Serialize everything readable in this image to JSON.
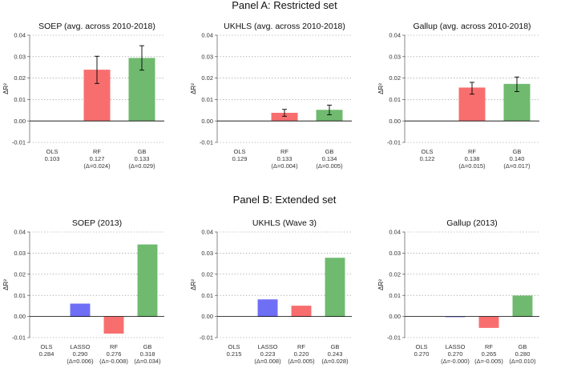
{
  "panels": [
    {
      "title": "Panel A: Restricted set",
      "charts": [
        {
          "type": "bar",
          "title": "SOEP (avg. across 2010-2018)",
          "ylabel": "ΔR²",
          "ylim": [
            -0.01,
            0.04
          ],
          "yticks": [
            "-0.01",
            "0.00",
            "0.01",
            "0.02",
            "0.03",
            "0.04"
          ],
          "categories": [
            {
              "name": "OLS",
              "value": 0,
              "r2": "0.103",
              "delta": ""
            },
            {
              "name": "RF",
              "value": 0.0238,
              "r2": "0.127",
              "delta": "(Δ=0.024)",
              "err": [
                0.0175,
                0.0302
              ],
              "color": "#f86e6e"
            },
            {
              "name": "GB",
              "value": 0.0293,
              "r2": "0.133",
              "delta": "(Δ=0.029)",
              "err": [
                0.0237,
                0.0351
              ],
              "color": "#6fba6f"
            }
          ]
        },
        {
          "type": "bar",
          "title": "UKHLS (avg. across 2010-2018)",
          "ylabel": "ΔR²",
          "ylim": [
            -0.01,
            0.04
          ],
          "yticks": [
            "-0.01",
            "0.00",
            "0.01",
            "0.02",
            "0.03",
            "0.04"
          ],
          "categories": [
            {
              "name": "OLS",
              "value": 0,
              "r2": "0.129",
              "delta": ""
            },
            {
              "name": "RF",
              "value": 0.0037,
              "r2": "0.133",
              "delta": "(Δ=0.004)",
              "err": [
                0.0022,
                0.0054
              ],
              "color": "#f86e6e"
            },
            {
              "name": "GB",
              "value": 0.0051,
              "r2": "0.134",
              "delta": "(Δ=0.005)",
              "err": [
                0.0029,
                0.0074
              ],
              "color": "#6fba6f"
            }
          ]
        },
        {
          "type": "bar",
          "title": "Gallup (avg. across 2010-2018)",
          "ylabel": "ΔR²",
          "ylim": [
            -0.01,
            0.04
          ],
          "yticks": [
            "-0.01",
            "0.00",
            "0.01",
            "0.02",
            "0.03",
            "0.04"
          ],
          "categories": [
            {
              "name": "OLS",
              "value": 0,
              "r2": "0.122",
              "delta": ""
            },
            {
              "name": "RF",
              "value": 0.0155,
              "r2": "0.138",
              "delta": "(Δ=0.015)",
              "err": [
                0.0125,
                0.018
              ],
              "color": "#f86e6e"
            },
            {
              "name": "GB",
              "value": 0.0172,
              "r2": "0.140",
              "delta": "(Δ=0.017)",
              "err": [
                0.0137,
                0.0205
              ],
              "color": "#6fba6f"
            }
          ]
        }
      ]
    },
    {
      "title": "Panel B: Extended set",
      "charts": [
        {
          "type": "bar",
          "title": "SOEP (2013)",
          "ylabel": "ΔR²",
          "ylim": [
            -0.01,
            0.04
          ],
          "yticks": [
            "-0.01",
            "0.00",
            "0.01",
            "0.02",
            "0.03",
            "0.04"
          ],
          "categories": [
            {
              "name": "OLS",
              "value": 0,
              "r2": "0.284",
              "delta": ""
            },
            {
              "name": "LASSO",
              "value": 0.006,
              "r2": "0.290",
              "delta": "(Δ=0.006)",
              "color": "#6f6ff5"
            },
            {
              "name": "RF",
              "value": -0.008,
              "r2": "0.276",
              "delta": "(Δ=-0.008)",
              "color": "#f86e6e"
            },
            {
              "name": "GB",
              "value": 0.034,
              "r2": "0.318",
              "delta": "(Δ=0.034)",
              "color": "#6fba6f"
            }
          ]
        },
        {
          "type": "bar",
          "title": "UKHLS (Wave 3)",
          "ylabel": "ΔR²",
          "ylim": [
            -0.01,
            0.04
          ],
          "yticks": [
            "-0.01",
            "0.00",
            "0.01",
            "0.02",
            "0.03",
            "0.04"
          ],
          "categories": [
            {
              "name": "OLS",
              "value": 0,
              "r2": "0.215",
              "delta": ""
            },
            {
              "name": "LASSO",
              "value": 0.008,
              "r2": "0.223",
              "delta": "(Δ=0.008)",
              "color": "#6f6ff5"
            },
            {
              "name": "RF",
              "value": 0.005,
              "r2": "0.220",
              "delta": "(Δ=0.005)",
              "color": "#f86e6e"
            },
            {
              "name": "GB",
              "value": 0.0277,
              "r2": "0.243",
              "delta": "(Δ=0.028)",
              "color": "#6fba6f"
            }
          ]
        },
        {
          "type": "bar",
          "title": "Gallup (2013)",
          "ylabel": "ΔR²",
          "ylim": [
            -0.01,
            0.04
          ],
          "yticks": [
            "-0.01",
            "0.00",
            "0.01",
            "0.02",
            "0.03",
            "0.04"
          ],
          "categories": [
            {
              "name": "OLS",
              "value": 0,
              "r2": "0.270",
              "delta": ""
            },
            {
              "name": "LASSO",
              "value": -0.0002,
              "r2": "0.270",
              "delta": "(Δ=-0.000)",
              "color": "#6f6ff5"
            },
            {
              "name": "RF",
              "value": -0.0053,
              "r2": "0.265",
              "delta": "(Δ=-0.005)",
              "color": "#f86e6e"
            },
            {
              "name": "GB",
              "value": 0.0098,
              "r2": "0.280",
              "delta": "(Δ=0.010)",
              "color": "#6fba6f"
            }
          ]
        }
      ]
    }
  ]
}
